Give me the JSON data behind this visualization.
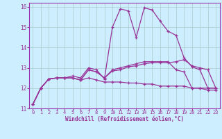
{
  "xlabel": "Windchill (Refroidissement éolien,°C)",
  "bg_color": "#cceeff",
  "line_color": "#993399",
  "grid_color": "#aacccc",
  "axis_color": "#9933aa",
  "xlim": [
    -0.5,
    23.5
  ],
  "ylim": [
    11,
    16.2
  ],
  "yticks": [
    11,
    12,
    13,
    14,
    15,
    16
  ],
  "xticks": [
    0,
    1,
    2,
    3,
    4,
    5,
    6,
    7,
    8,
    9,
    10,
    11,
    12,
    13,
    14,
    15,
    16,
    17,
    18,
    19,
    20,
    21,
    22,
    23
  ],
  "series1": [
    11.2,
    12.0,
    12.45,
    12.5,
    12.5,
    12.6,
    12.5,
    13.0,
    12.9,
    12.45,
    15.0,
    15.9,
    15.8,
    14.5,
    15.95,
    15.85,
    15.3,
    14.8,
    14.6,
    13.5,
    13.05,
    12.9,
    12.0,
    12.0
  ],
  "series2": [
    11.2,
    12.0,
    12.45,
    12.5,
    12.5,
    12.5,
    12.4,
    12.5,
    12.4,
    12.3,
    12.3,
    12.3,
    12.25,
    12.25,
    12.2,
    12.2,
    12.1,
    12.1,
    12.1,
    12.1,
    12.0,
    12.0,
    12.0,
    12.0
  ],
  "series3": [
    11.2,
    12.0,
    12.45,
    12.5,
    12.5,
    12.5,
    12.4,
    12.9,
    12.8,
    12.5,
    12.85,
    12.9,
    13.05,
    13.1,
    13.2,
    13.25,
    13.25,
    13.25,
    13.3,
    13.4,
    13.1,
    13.0,
    12.9,
    12.0
  ],
  "series4": [
    11.2,
    12.0,
    12.45,
    12.5,
    12.5,
    12.5,
    12.4,
    12.9,
    12.8,
    12.5,
    12.9,
    13.0,
    13.1,
    13.2,
    13.3,
    13.3,
    13.3,
    13.3,
    12.9,
    12.8,
    12.0,
    12.0,
    11.9,
    11.9
  ]
}
